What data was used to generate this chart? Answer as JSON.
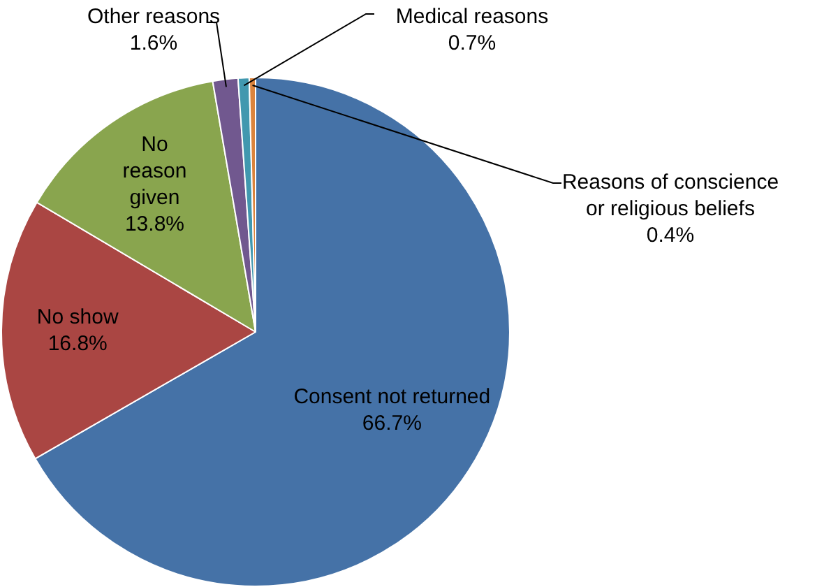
{
  "chart_data": {
    "type": "pie",
    "categories": [
      "Consent not returned",
      "No show",
      "No reason given",
      "Other reasons",
      "Medical reasons",
      "Reasons of conscience or religious beliefs"
    ],
    "values": [
      66.7,
      16.8,
      13.8,
      1.6,
      0.7,
      0.4
    ],
    "colors": [
      "#4572a7",
      "#aa4643",
      "#89a54e",
      "#71588f",
      "#4198af",
      "#db843d"
    ],
    "value_labels": [
      "66.7%",
      "16.8%",
      "13.8%",
      "1.6%",
      "0.7%",
      "0.4%"
    ],
    "legend": false
  }
}
